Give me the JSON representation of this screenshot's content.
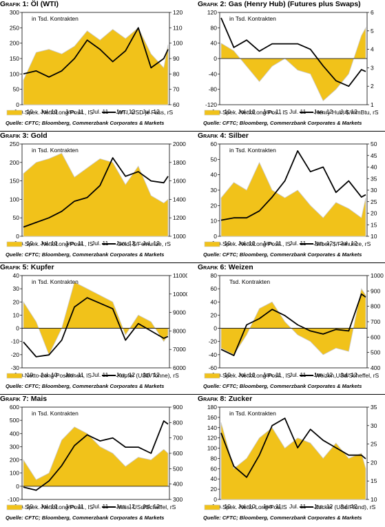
{
  "source": "Quelle: CFTC; Bloomberg, Commerzbank Corporates & Markets",
  "colors": {
    "bar": "#f1c21a",
    "bar_edge": "#c9c9c9",
    "line": "#000000"
  },
  "chart_data": [
    {
      "type": "area",
      "title": "Öl (WTI)",
      "title_prefix": "Grafik 1:",
      "units_note": "in Tsd. Kontrakten",
      "x_ticks": [
        "Jan. 10",
        "Jul. 10",
        "Jan. 11",
        "Jul. 11",
        "Jan. 12",
        "Jul. 12"
      ],
      "ylim": [
        0,
        300
      ],
      "y_ticks": [
        0,
        50,
        100,
        150,
        200,
        250,
        300
      ],
      "y2lim": [
        60,
        120
      ],
      "y2_ticks": [
        60,
        70,
        80,
        90,
        100,
        110,
        120
      ],
      "legend": [
        "Spek. NettoLong Posit., lS",
        "WTI, USD je Fass, rS"
      ],
      "x": [
        0,
        3,
        6,
        9,
        12,
        15,
        18,
        21,
        24,
        27,
        30,
        33,
        34
      ],
      "series": [
        {
          "name": "Spek. NettoLong Posit., lS",
          "axis": "left",
          "values": [
            80,
            170,
            180,
            165,
            190,
            240,
            210,
            245,
            215,
            250,
            165,
            120,
            195
          ]
        },
        {
          "name": "WTI, USD je Fass, rS",
          "axis": "right",
          "values": [
            80,
            82,
            78,
            82,
            90,
            102,
            96,
            88,
            95,
            110,
            84,
            90,
            96
          ]
        }
      ]
    },
    {
      "type": "area",
      "title": "Gas (Henry Hub) (Futures plus Swaps)",
      "title_prefix": "Grafik 2:",
      "units_note": "in Tsd. Kontrakten",
      "x_ticks": [
        "Jan. 10",
        "Jul. 10",
        "Jan. 11",
        "Jul. 11",
        "Jan. 12",
        "Jul. 12"
      ],
      "ylim": [
        -120,
        120
      ],
      "y_ticks": [
        -120,
        -80,
        -40,
        0,
        40,
        80,
        120
      ],
      "y2lim": [
        1,
        6
      ],
      "y2_ticks": [
        1,
        2,
        3,
        4,
        5,
        6
      ],
      "legend": [
        "Spek. NettoLong Pos., lS",
        "Henry Hub, $/mmBtu, rS"
      ],
      "x": [
        0,
        3,
        6,
        9,
        12,
        15,
        18,
        21,
        24,
        27,
        30,
        33,
        34
      ],
      "series": [
        {
          "name": "Spek. NettoLong Pos., lS",
          "axis": "left",
          "values": [
            40,
            20,
            -20,
            -60,
            -20,
            0,
            -30,
            -40,
            -110,
            -80,
            -40,
            60,
            80
          ]
        },
        {
          "name": "Henry Hub, $/mmBtu, rS",
          "axis": "right",
          "values": [
            5.7,
            4.1,
            4.5,
            3.9,
            4.3,
            4.3,
            4.3,
            4.0,
            3.1,
            2.3,
            2.0,
            2.9,
            2.8
          ]
        }
      ]
    },
    {
      "type": "area",
      "title": "Gold",
      "title_prefix": "Grafik 3:",
      "units_note": "in Tsd. Kontrakten",
      "x_ticks": [
        "Jan. 10",
        "Jul. 10",
        "Jan. 11",
        "Jul. 11",
        "Jan. 12",
        "Jul. 12"
      ],
      "ylim": [
        0,
        250
      ],
      "y_ticks": [
        0,
        50,
        100,
        150,
        200,
        250
      ],
      "y2lim": [
        1000,
        2000
      ],
      "y2_ticks": [
        1000,
        1200,
        1400,
        1600,
        1800,
        2000
      ],
      "legend": [
        "Spek. NettoLong Posit., lS",
        "Gold, $/Feinunze, rS"
      ],
      "x": [
        0,
        3,
        6,
        9,
        12,
        15,
        18,
        21,
        24,
        27,
        30,
        33,
        34
      ],
      "series": [
        {
          "name": "Spek. NettoLong Posit., lS",
          "axis": "left",
          "values": [
            170,
            200,
            210,
            225,
            160,
            185,
            210,
            200,
            140,
            190,
            110,
            90,
            100
          ]
        },
        {
          "name": "Gold, $/Feinunze, rS",
          "axis": "right",
          "values": [
            1100,
            1150,
            1200,
            1270,
            1380,
            1420,
            1550,
            1850,
            1650,
            1700,
            1600,
            1580,
            1650
          ]
        }
      ]
    },
    {
      "type": "area",
      "title": "Silber",
      "title_prefix": "Grafik 4:",
      "units_note": "in Tsd. Kontrakten",
      "x_ticks": [
        "Jan. 10",
        "Jul. 10",
        "Jan. 11",
        "Jul. 11",
        "Jan. 12",
        "Jul. 12"
      ],
      "ylim": [
        0,
        60
      ],
      "y_ticks": [
        0,
        10,
        20,
        30,
        40,
        50,
        60
      ],
      "y2lim": [
        10,
        50
      ],
      "y2_ticks": [
        10,
        15,
        20,
        25,
        30,
        35,
        40,
        45,
        50
      ],
      "legend": [
        "Spek. NettoLong Posit., lS",
        "Silber, $/Feinunze, rS"
      ],
      "x": [
        0,
        3,
        6,
        9,
        12,
        15,
        18,
        21,
        24,
        27,
        30,
        33,
        34
      ],
      "series": [
        {
          "name": "Spek. NettoLong Posit., lS",
          "axis": "left",
          "values": [
            25,
            35,
            30,
            48,
            30,
            25,
            30,
            20,
            12,
            22,
            18,
            12,
            25
          ]
        },
        {
          "name": "Silber, $/Feinunze, rS",
          "axis": "right",
          "values": [
            17,
            18,
            18,
            21,
            27,
            34,
            47,
            38,
            40,
            29,
            34,
            27,
            28
          ]
        }
      ]
    },
    {
      "type": "area",
      "title": "Kupfer",
      "title_prefix": "Grafik 5:",
      "units_note": "in Tsd. Kontrakten",
      "x_ticks": [
        "Jan. 10",
        "Jul. 10",
        "Jan. 11",
        "Jul. 11",
        "Jan. 12",
        "Jul. 12"
      ],
      "ylim": [
        -30,
        40
      ],
      "y_ticks": [
        -30,
        -20,
        -10,
        0,
        10,
        20,
        30,
        40
      ],
      "y2lim": [
        6000,
        11000
      ],
      "y2_ticks": [
        6000,
        7000,
        8000,
        9000,
        10000,
        11000
      ],
      "legend": [
        "Netto-Long-Positionen, lS",
        "Kupfer (USD/Tonne), rS"
      ],
      "x": [
        0,
        3,
        6,
        9,
        12,
        15,
        18,
        21,
        24,
        27,
        30,
        33,
        34
      ],
      "series": [
        {
          "name": "Netto-Long-Positionen, lS",
          "axis": "left",
          "values": [
            20,
            5,
            -20,
            0,
            35,
            30,
            25,
            20,
            -5,
            10,
            5,
            -10,
            -5
          ]
        },
        {
          "name": "Kupfer (USD/Tonne), rS",
          "axis": "right",
          "values": [
            7400,
            6600,
            6700,
            7500,
            9300,
            9800,
            9500,
            9200,
            7500,
            8400,
            8000,
            7600,
            7700
          ]
        }
      ]
    },
    {
      "type": "area",
      "title": "Weizen",
      "title_prefix": "Grafik 6:",
      "units_note": "Tsd. Kontrakten",
      "x_ticks": [
        "Jan. 10",
        "Jul. 10",
        "Jan. 11",
        "Jul. 11",
        "Jan. 12",
        "Jul. 12"
      ],
      "ylim": [
        -60,
        80
      ],
      "y_ticks": [
        -60,
        -40,
        -20,
        0,
        20,
        40,
        60,
        80
      ],
      "y2lim": [
        400,
        1000
      ],
      "y2_ticks": [
        400,
        500,
        600,
        700,
        800,
        900,
        1000
      ],
      "legend": [
        "Spek. NettoLong Posit., lS",
        "Weizen,USd/Scheffel, rS"
      ],
      "x": [
        0,
        3,
        6,
        9,
        12,
        15,
        18,
        21,
        24,
        27,
        30,
        33,
        34
      ],
      "series": [
        {
          "name": "Spek. NettoLong Posit., lS",
          "axis": "left",
          "values": [
            -30,
            -40,
            -10,
            30,
            40,
            10,
            -10,
            -20,
            -40,
            -30,
            -35,
            60,
            50
          ]
        },
        {
          "name": "Weizen,USd/Scheffel, rS",
          "axis": "right",
          "values": [
            520,
            480,
            680,
            720,
            780,
            740,
            680,
            640,
            620,
            650,
            640,
            880,
            860
          ]
        }
      ]
    },
    {
      "type": "area",
      "title": "Mais",
      "title_prefix": "Grafik 7:",
      "units_note": "in Tsd. Kontrakten",
      "x_ticks": [
        "Jan. 10",
        "Jul. 10",
        "Jan. 11",
        "Jul. 11",
        "Jan. 12",
        "Jul. 12"
      ],
      "ylim": [
        -100,
        600
      ],
      "y_ticks": [
        -100,
        0,
        100,
        200,
        300,
        400,
        500,
        600
      ],
      "y2lim": [
        300,
        900
      ],
      "y2_ticks": [
        300,
        400,
        500,
        600,
        700,
        800,
        900
      ],
      "legend": [
        "Spek. NettoLong Posit., lS",
        "Mais, USd/Scheffel, rS"
      ],
      "x": [
        0,
        3,
        6,
        9,
        12,
        15,
        18,
        21,
        24,
        27,
        30,
        33,
        34
      ],
      "series": [
        {
          "name": "Spek. NettoLong Posit., lS",
          "axis": "left",
          "values": [
            200,
            50,
            100,
            350,
            450,
            400,
            300,
            250,
            150,
            220,
            200,
            280,
            250
          ]
        },
        {
          "name": "Mais, USd/Scheffel, rS",
          "axis": "right",
          "values": [
            380,
            360,
            420,
            520,
            650,
            720,
            680,
            700,
            640,
            640,
            600,
            810,
            790
          ]
        }
      ]
    },
    {
      "type": "area",
      "title": "Zucker",
      "title_prefix": "Grafik 8:",
      "units_note": "in Tsd. Kontrakten",
      "x_ticks": [
        "Jan. 10",
        "Jul. 10",
        "Jan. 11",
        "Jul. 11",
        "Jan. 12",
        "Jul. 12"
      ],
      "ylim": [
        0,
        180
      ],
      "y_ticks": [
        0,
        20,
        40,
        60,
        80,
        100,
        120,
        140,
        160,
        180
      ],
      "y2lim": [
        10,
        35
      ],
      "y2_ticks": [
        10,
        15,
        20,
        25,
        30,
        35
      ],
      "legend": [
        "Spek. Netto-Long-Pos,lS",
        "Zucker (USd/Pfund), rS"
      ],
      "x": [
        0,
        3,
        6,
        9,
        12,
        15,
        18,
        21,
        24,
        27,
        30,
        33,
        34
      ],
      "series": [
        {
          "name": "Spek. Netto-Long-Pos,lS",
          "axis": "left",
          "values": [
            150,
            60,
            80,
            120,
            140,
            100,
            120,
            110,
            80,
            110,
            80,
            90,
            60
          ]
        },
        {
          "name": "Zucker (USd/Pfund), rS",
          "axis": "right",
          "values": [
            28,
            19,
            16,
            22,
            30,
            32,
            24,
            29,
            26,
            24,
            22,
            22,
            21
          ]
        }
      ]
    }
  ]
}
